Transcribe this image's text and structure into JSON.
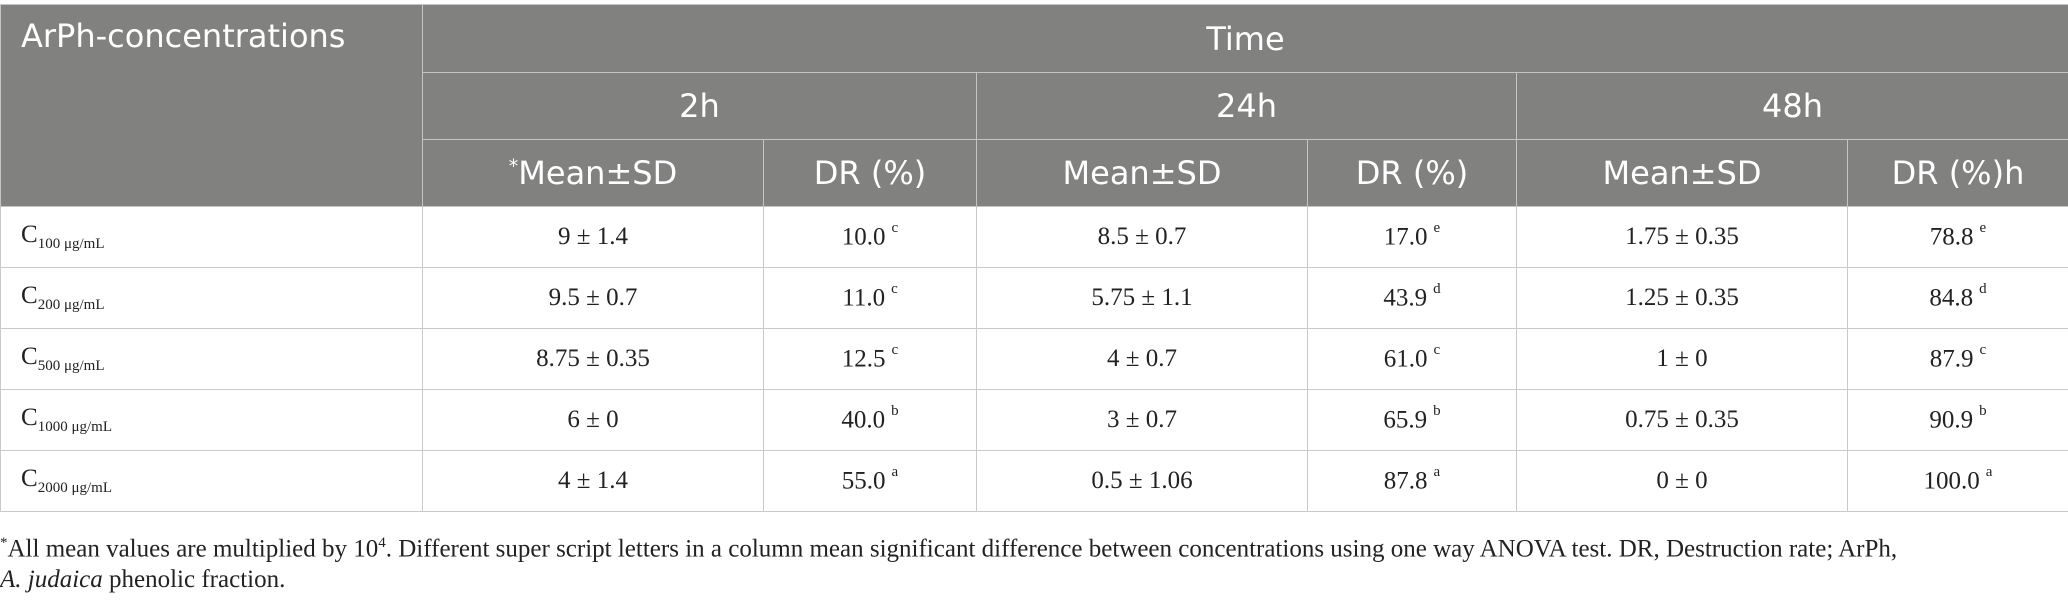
{
  "table": {
    "header": {
      "concentrations": "ArPh-concentrations",
      "time": "Time",
      "times": [
        "2h",
        "24h",
        "48h"
      ],
      "asterisk": "*",
      "sub_columns": [
        "Mean±SD",
        "DR (%)",
        "Mean±SD",
        "DR (%)",
        "Mean±SD",
        "DR (%)h"
      ]
    },
    "rows": [
      {
        "label": "C",
        "unit": "100 μg/mL",
        "cells": [
          {
            "text": "9 ± 1.4"
          },
          {
            "text": "10.0",
            "sup": "c"
          },
          {
            "text": "8.5 ± 0.7"
          },
          {
            "text": "17.0",
            "sup": "e"
          },
          {
            "text": "1.75 ± 0.35"
          },
          {
            "text": "78.8",
            "sup": "e"
          }
        ]
      },
      {
        "label": "C",
        "unit": "200 μg/mL",
        "cells": [
          {
            "text": "9.5 ± 0.7"
          },
          {
            "text": "11.0",
            "sup": "c"
          },
          {
            "text": "5.75 ± 1.1"
          },
          {
            "text": "43.9",
            "sup": "d"
          },
          {
            "text": "1.25 ± 0.35"
          },
          {
            "text": "84.8",
            "sup": "d"
          }
        ]
      },
      {
        "label": "C",
        "unit": "500 μg/mL",
        "cells": [
          {
            "text": "8.75 ± 0.35"
          },
          {
            "text": "12.5",
            "sup": "c"
          },
          {
            "text": "4 ± 0.7"
          },
          {
            "text": "61.0",
            "sup": "c"
          },
          {
            "text": "1 ± 0"
          },
          {
            "text": "87.9",
            "sup": "c"
          }
        ]
      },
      {
        "label": "C",
        "unit": "1000 μg/mL",
        "cells": [
          {
            "text": "6 ± 0"
          },
          {
            "text": "40.0",
            "sup": "b"
          },
          {
            "text": "3 ± 0.7"
          },
          {
            "text": "65.9",
            "sup": "b"
          },
          {
            "text": "0.75 ± 0.35"
          },
          {
            "text": "90.9",
            "sup": "b"
          }
        ]
      },
      {
        "label": "C",
        "unit": "2000 μg/mL",
        "cells": [
          {
            "text": "4 ± 1.4"
          },
          {
            "text": "55.0",
            "sup": "a"
          },
          {
            "text": "0.5 ± 1.06"
          },
          {
            "text": "87.8",
            "sup": "a"
          },
          {
            "text": "0 ± 0"
          },
          {
            "text": "100.0",
            "sup": "a"
          }
        ]
      }
    ]
  },
  "footnote": {
    "star": "*",
    "text_1": "All mean values are multiplied by 10",
    "exponent": "4",
    "text_2": ". Different super script letters in a column mean significant difference between concentrations using one way ANOVA test. DR, Destruction rate; ArPh,",
    "species": "A. judaica",
    "text_3": " phenolic fraction."
  }
}
